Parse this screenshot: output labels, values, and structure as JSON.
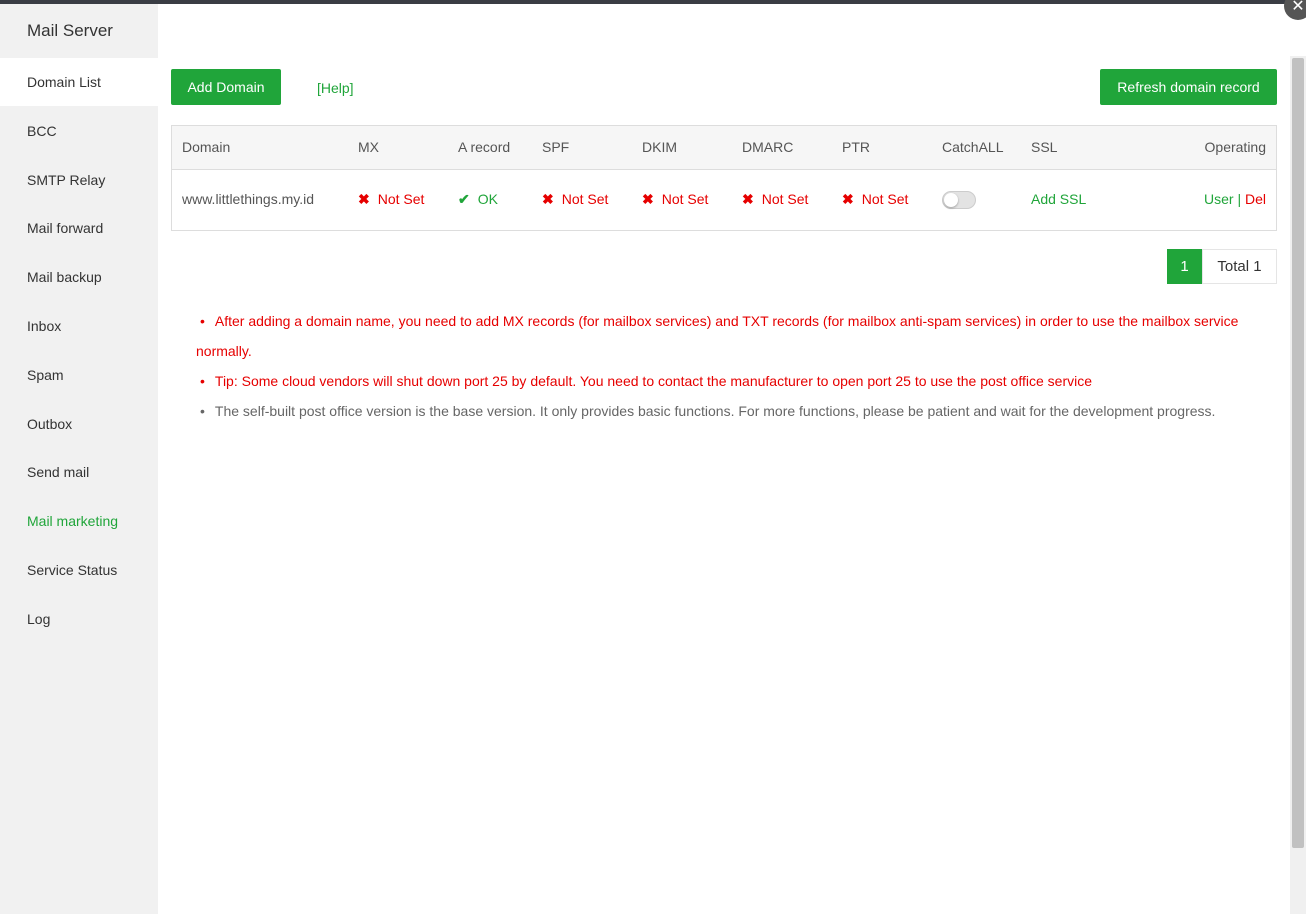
{
  "sidebar": {
    "title": "Mail Server",
    "items": [
      "Domain List",
      "BCC",
      "SMTP Relay",
      "Mail forward",
      "Mail backup",
      "Inbox",
      "Spam",
      "Outbox",
      "Send mail",
      "Mail marketing",
      "Service Status",
      "Log"
    ]
  },
  "toolbar": {
    "add": "Add Domain",
    "help": "[Help]",
    "refresh": "Refresh domain record"
  },
  "table": {
    "headers": [
      "Domain",
      "MX",
      "A record",
      "SPF",
      "DKIM",
      "DMARC",
      "PTR",
      "CatchALL",
      "SSL",
      "Operating"
    ],
    "rows": [
      {
        "domain": "www.littlethings.my.id",
        "mx": "Not Set",
        "a_record": "OK",
        "spf": "Not Set",
        "dkim": "Not Set",
        "dmarc": "Not Set",
        "ptr": "Not Set",
        "ssl": "Add SSL",
        "user": "User",
        "separator": "|",
        "del": "Del"
      }
    ]
  },
  "pagination": {
    "page": 1,
    "total": "Total 1"
  },
  "notes": [
    "After adding a domain name, you need to add MX records (for mailbox services) and TXT records (for mailbox anti-spam services) in order to use the mailbox service normally.",
    "Tip: Some cloud vendors will shut down port 25 by default. You need to contact the manufacturer to open port 25 to use the post office service",
    "The self-built post office version is the base version. It only provides basic functions. For more functions, please be patient and wait for the development progress."
  ]
}
